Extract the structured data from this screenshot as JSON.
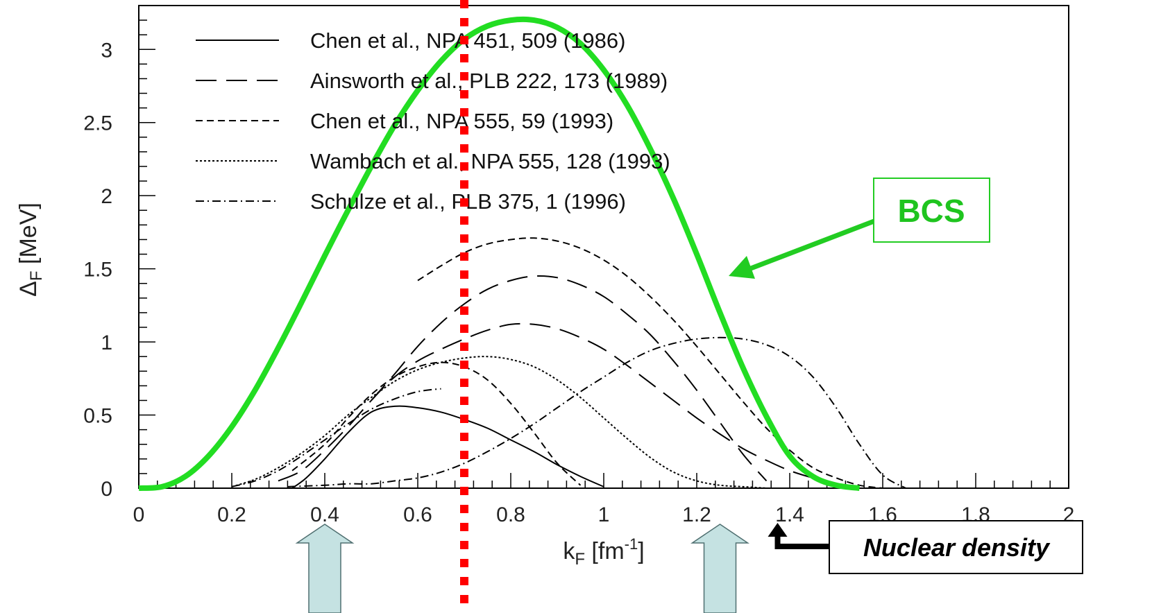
{
  "chart_data": {
    "type": "line",
    "xlabel": {
      "main": "k",
      "sub": "F",
      "unit_open": " [fm",
      "sup": "-1",
      "unit_close": "]"
    },
    "ylabel": {
      "main": "Δ",
      "sub": "F",
      "unit": " [MeV]"
    },
    "xlim": [
      0,
      2
    ],
    "ylim": [
      0,
      3.3
    ],
    "x_ticks": [
      "0",
      "0.2",
      "0.4",
      "0.6",
      "0.8",
      "1",
      "1.2",
      "1.4",
      "1.6",
      "1.8",
      "2"
    ],
    "y_ticks": [
      "0",
      "0.5",
      "1",
      "1.5",
      "2",
      "2.5",
      "3"
    ],
    "grid": false,
    "legend_position": "top-left",
    "legend": [
      {
        "label": "Chen et al., NPA 451, 509 (1986)",
        "style": "solid"
      },
      {
        "label": "Ainsworth et al., PLB 222, 173 (1989)",
        "style": "long-dash"
      },
      {
        "label": "Chen et al., NPA 555, 59 (1993)",
        "style": "dash"
      },
      {
        "label": "Wambach et al., NPA 555, 128 (1993)",
        "style": "dot"
      },
      {
        "label": "Schulze et al., PLB 375, 1 (1996)",
        "style": "dash-dot"
      }
    ],
    "series": [
      {
        "name": "BCS",
        "style": "bcs",
        "color": "#22dd22",
        "x": [
          0,
          0.05,
          0.1,
          0.15,
          0.2,
          0.25,
          0.3,
          0.35,
          0.4,
          0.45,
          0.5,
          0.55,
          0.6,
          0.65,
          0.7,
          0.75,
          0.8,
          0.85,
          0.9,
          0.95,
          1.0,
          1.05,
          1.1,
          1.15,
          1.2,
          1.25,
          1.3,
          1.35,
          1.4,
          1.45,
          1.5,
          1.55
        ],
        "y": [
          0,
          0.01,
          0.08,
          0.22,
          0.42,
          0.67,
          0.96,
          1.27,
          1.59,
          1.9,
          2.2,
          2.48,
          2.72,
          2.92,
          3.07,
          3.16,
          3.2,
          3.2,
          3.15,
          3.04,
          2.86,
          2.62,
          2.32,
          1.98,
          1.6,
          1.2,
          0.82,
          0.49,
          0.22,
          0.08,
          0.02,
          0
        ]
      },
      {
        "name": "Chen et al., NPA 451, 509 (1986)",
        "style": "solid",
        "x": [
          0.33,
          0.36,
          0.4,
          0.45,
          0.5,
          0.55,
          0.6,
          0.65,
          0.7,
          0.75,
          0.8,
          0.85,
          0.9,
          0.95,
          1.0
        ],
        "y": [
          0,
          0.07,
          0.2,
          0.38,
          0.52,
          0.56,
          0.55,
          0.52,
          0.47,
          0.41,
          0.33,
          0.25,
          0.16,
          0.08,
          0.01
        ]
      },
      {
        "name": "Ainsworth et al., PLB 222, 173 (1989)",
        "style": "long-dash",
        "x": [
          0.3,
          0.35,
          0.4,
          0.45,
          0.5,
          0.55,
          0.6,
          0.65,
          0.7,
          0.75,
          0.8,
          0.85,
          0.9,
          0.95,
          1.0,
          1.05,
          1.1,
          1.15,
          1.2,
          1.25,
          1.3,
          1.35,
          1.4,
          1.45,
          1.5,
          1.55
        ],
        "y": [
          0.05,
          0.12,
          0.26,
          0.42,
          0.6,
          0.76,
          0.87,
          0.95,
          1.02,
          1.08,
          1.12,
          1.12,
          1.09,
          1.03,
          0.95,
          0.84,
          0.72,
          0.6,
          0.48,
          0.37,
          0.27,
          0.19,
          0.12,
          0.07,
          0.03,
          0
        ]
      },
      {
        "name": "Ainsworth et al., PLB 222, 173 (1989)",
        "style": "long-dash",
        "x": [
          0.5,
          0.55,
          0.6,
          0.65,
          0.7,
          0.75,
          0.8,
          0.85,
          0.9,
          0.95,
          1.0,
          1.05,
          1.1,
          1.15,
          1.2,
          1.25,
          1.3,
          1.35
        ],
        "y": [
          0.6,
          0.78,
          0.97,
          1.13,
          1.26,
          1.36,
          1.42,
          1.45,
          1.44,
          1.39,
          1.31,
          1.19,
          1.05,
          0.87,
          0.67,
          0.45,
          0.23,
          0.05
        ]
      },
      {
        "name": "Chen et al., NPA 555, 59 (1993)",
        "style": "dash",
        "x": [
          0.6,
          0.65,
          0.7,
          0.75,
          0.8,
          0.85,
          0.9,
          0.95,
          1.0,
          1.05,
          1.1,
          1.15,
          1.2,
          1.25,
          1.3,
          1.35,
          1.4,
          1.45,
          1.5,
          1.55,
          1.6
        ],
        "y": [
          1.42,
          1.52,
          1.61,
          1.67,
          1.7,
          1.71,
          1.69,
          1.64,
          1.56,
          1.45,
          1.31,
          1.15,
          0.97,
          0.78,
          0.59,
          0.41,
          0.26,
          0.14,
          0.07,
          0.02,
          0
        ]
      },
      {
        "name": "Chen et al., NPA 555, 59 (1993)",
        "style": "dash",
        "x": [
          0.33,
          0.4,
          0.45,
          0.5,
          0.55,
          0.6,
          0.65,
          0.7,
          0.75,
          0.8,
          0.85,
          0.9,
          0.95
        ],
        "y": [
          0.12,
          0.3,
          0.48,
          0.64,
          0.76,
          0.83,
          0.86,
          0.83,
          0.74,
          0.58,
          0.38,
          0.17,
          0.02
        ]
      },
      {
        "name": "Wambach et al., NPA 555, 128 (1993)",
        "style": "dot",
        "x": [
          0.2,
          0.25,
          0.3,
          0.35,
          0.4,
          0.45,
          0.5,
          0.55,
          0.6,
          0.65,
          0.7,
          0.75,
          0.8,
          0.85,
          0.9,
          0.95,
          1.0,
          1.05,
          1.1,
          1.15,
          1.2,
          1.25,
          1.3,
          1.35
        ],
        "y": [
          0.01,
          0.06,
          0.14,
          0.24,
          0.36,
          0.5,
          0.62,
          0.73,
          0.81,
          0.86,
          0.89,
          0.9,
          0.88,
          0.83,
          0.74,
          0.62,
          0.48,
          0.34,
          0.21,
          0.11,
          0.05,
          0.02,
          0.01,
          0
        ]
      },
      {
        "name": "Schulze et al., PLB 375, 1 (1996)",
        "style": "dash-dot",
        "x": [
          0.2,
          0.25,
          0.3,
          0.35,
          0.4,
          0.45,
          0.5,
          0.55,
          0.6,
          0.65
        ],
        "y": [
          0.01,
          0.05,
          0.12,
          0.22,
          0.33,
          0.44,
          0.54,
          0.61,
          0.66,
          0.68
        ]
      },
      {
        "name": "Schulze et al., PLB 375, 1 (1996)",
        "style": "dash-dot",
        "x": [
          0.32,
          0.4,
          0.45,
          0.5,
          0.55,
          0.6,
          0.65,
          0.7,
          0.75,
          0.8,
          0.85,
          0.9,
          0.95,
          1.0,
          1.05,
          1.1,
          1.15,
          1.2,
          1.25,
          1.3,
          1.35,
          1.4,
          1.45,
          1.5,
          1.55,
          1.6,
          1.65
        ],
        "y": [
          0.01,
          0.02,
          0.03,
          0.03,
          0.05,
          0.07,
          0.11,
          0.17,
          0.25,
          0.34,
          0.44,
          0.55,
          0.66,
          0.76,
          0.86,
          0.94,
          0.99,
          1.02,
          1.03,
          1.02,
          0.98,
          0.9,
          0.76,
          0.55,
          0.3,
          0.09,
          0
        ]
      }
    ],
    "annotations": {
      "bcs_label": "BCS",
      "bcs_color": "#22cc22",
      "nuclear_density_label": "Nuclear density",
      "marker_line_x": 0.7,
      "marker_line_color": "#ff0000",
      "up_arrow_x": [
        0.4,
        1.25
      ],
      "up_arrow_color": "#c5e2e2",
      "nuclear_density_arrow_x": 1.35
    }
  }
}
